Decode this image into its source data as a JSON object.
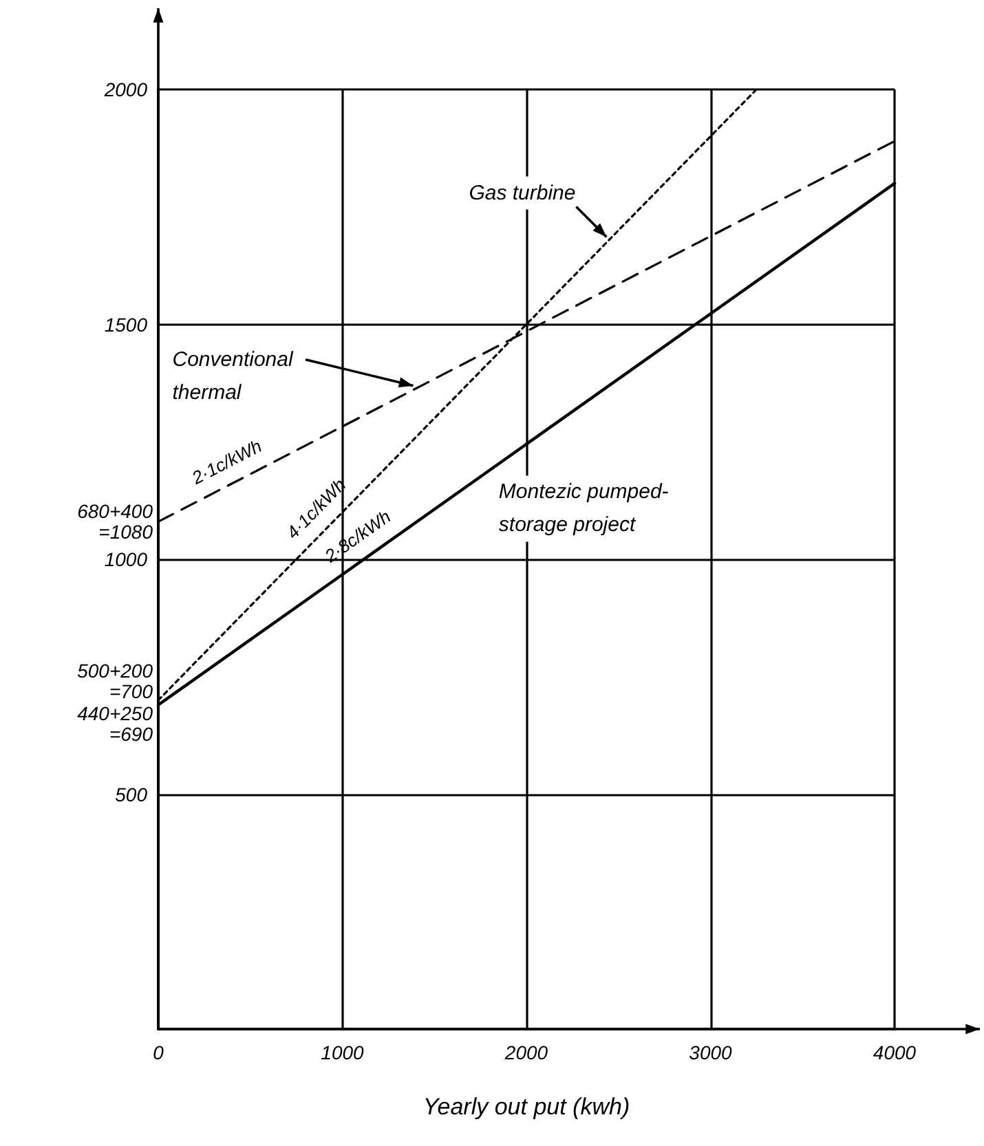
{
  "chart_data": {
    "type": "line",
    "xlabel": "Yearly out put (kwh)",
    "x": [
      0,
      4000
    ],
    "series": [
      {
        "name": "Gas turbine",
        "color": "#000000",
        "line_style": "dotted",
        "x": [
          0,
          3250
        ],
        "values": [
          700,
          2000
        ]
      },
      {
        "name": "Conventional thermal",
        "color": "#000000",
        "line_style": "dashed",
        "values": [
          1080,
          1890
        ]
      },
      {
        "name": "Montezic pumped-storage project",
        "color": "#000000",
        "line_style": "solid",
        "values": [
          690,
          1800
        ]
      }
    ],
    "xlim": [
      0,
      4000
    ],
    "ylim": [
      0,
      2000
    ],
    "xticks": [
      0,
      1000,
      2000,
      3000,
      4000
    ],
    "yticks": [
      {
        "value": 0,
        "label": null
      },
      500,
      1000,
      1500,
      2000
    ],
    "grid": true,
    "legend": false,
    "marker": "none",
    "annotations": [
      {
        "text": "680+400\n=1080",
        "x": 0,
        "y": 1080
      },
      {
        "text": "500+200\n=700",
        "x": 0,
        "y": 700
      },
      {
        "text": "440+250\n=690",
        "x": 0,
        "y": 690
      },
      {
        "text": "2·1c/kWh",
        "x": 425,
        "y": 1167
      },
      {
        "text": "4·1c/kWh",
        "x": 940,
        "y": 1076
      },
      {
        "text": "2·8c/kWh",
        "x": 1150,
        "y": 1012
      }
    ]
  }
}
